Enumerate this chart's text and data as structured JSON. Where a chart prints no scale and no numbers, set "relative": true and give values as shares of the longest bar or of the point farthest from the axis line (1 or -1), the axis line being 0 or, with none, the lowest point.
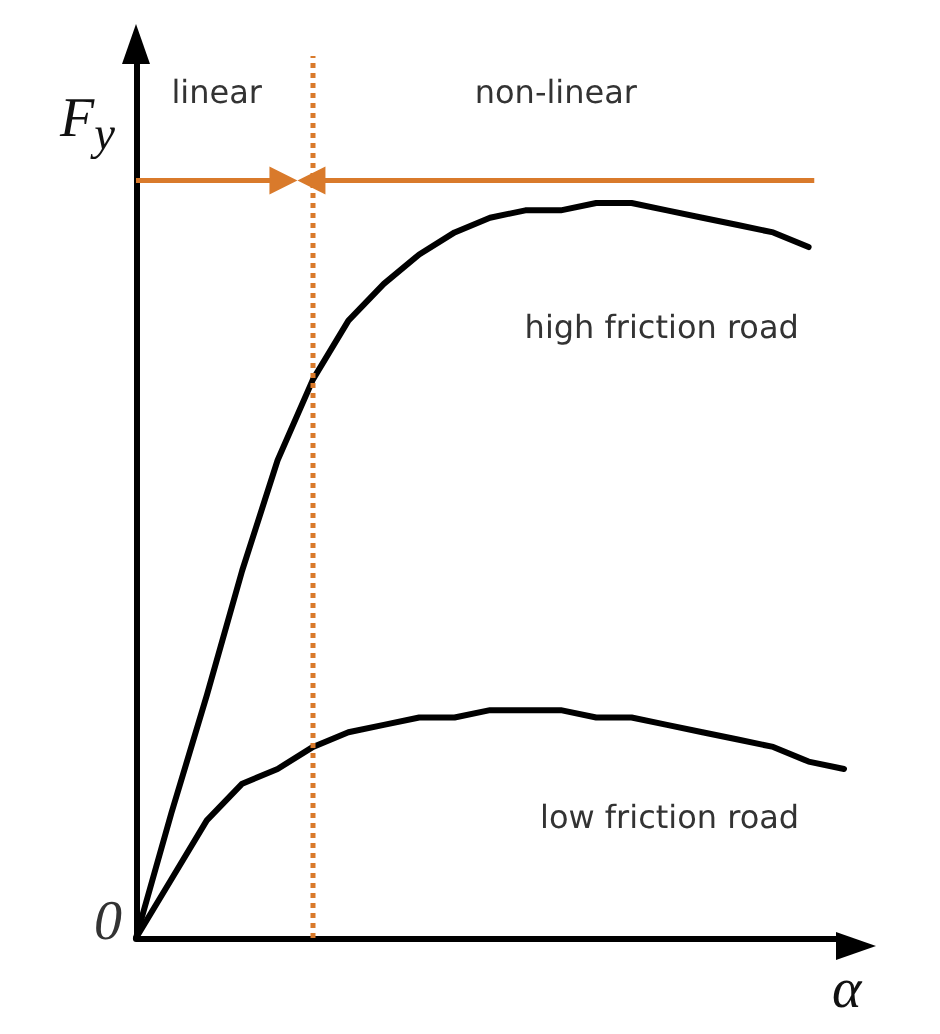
{
  "chart_data": {
    "type": "line",
    "relative": true,
    "xlabel": "α",
    "ylabel": "F$_{y}$",
    "grid": false,
    "legend": false,
    "marker": "none",
    "line_style": "solid",
    "categories": [
      null,
      null,
      null,
      null,
      null,
      null,
      null,
      null,
      null,
      null,
      null,
      null,
      null,
      null,
      null,
      null,
      null,
      null,
      null,
      null,
      null
    ],
    "series": [
      {
        "name": "high friction road",
        "color": "#000000",
        "values": [
          0,
          0.17,
          0.33,
          0.5,
          0.65,
          0.76,
          0.84,
          0.89,
          0.93,
          0.96,
          0.98,
          0.99,
          0.99,
          1.0,
          1.0,
          0.99,
          0.98,
          0.97,
          0.96,
          0.94,
          null
        ]
      },
      {
        "name": "low friction road",
        "color": "#000000",
        "values": [
          0,
          0.08,
          0.16,
          0.21,
          0.23,
          0.26,
          0.28,
          0.29,
          0.3,
          0.3,
          0.31,
          0.31,
          0.31,
          0.3,
          0.3,
          0.29,
          0.28,
          0.27,
          0.26,
          0.24,
          0.23
        ]
      }
    ],
    "ref_lines": [
      {
        "axis": "x",
        "color": "#d97a2b",
        "line_style": "dotted"
      }
    ],
    "annotations": [
      "linear",
      "non-linear",
      "0"
    ]
  }
}
